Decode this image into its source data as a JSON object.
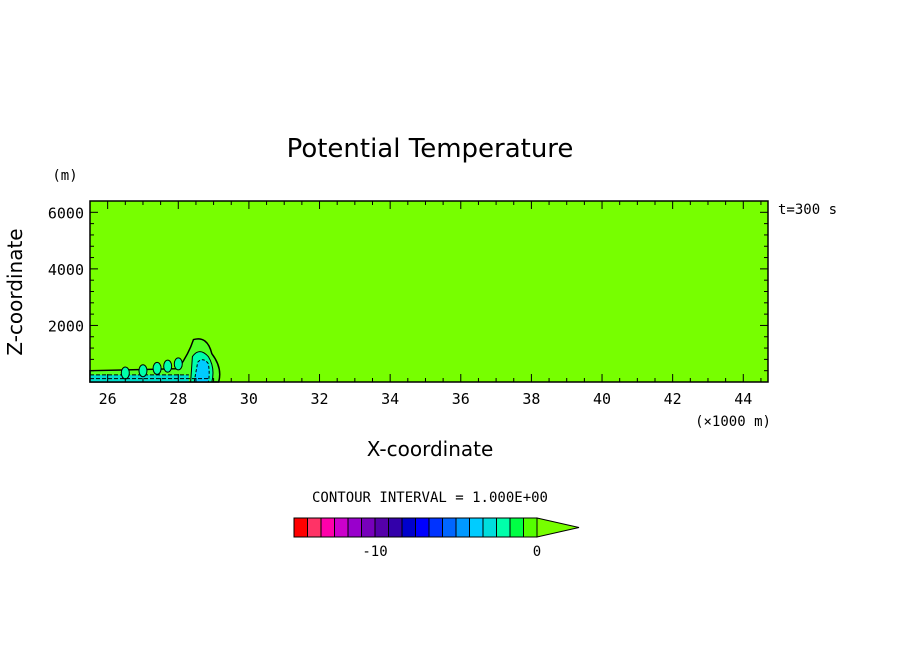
{
  "chart_data": {
    "type": "heatmap",
    "title": "Potential Temperature",
    "xlabel": "X-coordinate",
    "ylabel": "Z-coordinate",
    "x_units": "(×1000 m)",
    "y_units": "(m)",
    "time_label": "t=300 s",
    "xlim": [
      25.5,
      44.7
    ],
    "ylim": [
      0,
      6400
    ],
    "x_ticks": [
      "26",
      "28",
      "30",
      "32",
      "34",
      "36",
      "38",
      "40",
      "42",
      "44"
    ],
    "y_ticks": [
      "2000",
      "4000",
      "6000"
    ],
    "background_value": 0,
    "background_color": "#77ff00",
    "cold_pool": {
      "front_x": 29.2,
      "head_top_z": 1500,
      "head_center_x": 28.6,
      "tail_depth_z": 400,
      "features": [
        {
          "x": 26.5,
          "z": 320
        },
        {
          "x": 27.0,
          "z": 400
        },
        {
          "x": 27.4,
          "z": 480
        },
        {
          "x": 27.7,
          "z": 560
        },
        {
          "x": 28.0,
          "z": 640
        }
      ]
    },
    "colorbar": {
      "label": "CONTOUR INTERVAL = 1.000E+00",
      "ticks": [
        "-10",
        "0"
      ],
      "colors": [
        "#ff0000",
        "#ff3366",
        "#ff00aa",
        "#cc00cc",
        "#9900cc",
        "#7700bb",
        "#5500aa",
        "#3300aa",
        "#0000cc",
        "#0000ff",
        "#0033ff",
        "#0066ff",
        "#0099ff",
        "#00ccff",
        "#00dddd",
        "#00ffaa",
        "#00ff44",
        "#55ff00",
        "#77ff00"
      ]
    }
  }
}
